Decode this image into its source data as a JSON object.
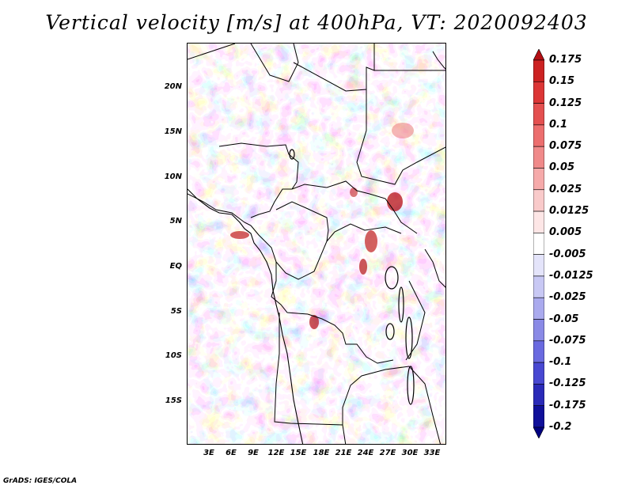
{
  "title": "Vertical velocity [m/s] at 400hPa, VT: 2020092403",
  "footer": "GrADS: IGES/COLA",
  "map": {
    "lat_labels": [
      "20N",
      "15N",
      "10N",
      "5N",
      "EQ",
      "5S",
      "10S",
      "15S"
    ],
    "lon_labels": [
      "3E",
      "6E",
      "9E",
      "12E",
      "15E",
      "18E",
      "21E",
      "24E",
      "27E",
      "30E",
      "33E"
    ]
  },
  "colorbar": {
    "labels": [
      "0.175",
      "0.15",
      "0.125",
      "0.1",
      "0.075",
      "0.05",
      "0.025",
      "0.0125",
      "0.005",
      "-0.005",
      "-0.0125",
      "-0.025",
      "-0.05",
      "-0.075",
      "-0.1",
      "-0.125",
      "-0.175",
      "-0.2"
    ],
    "colors": [
      "#b40f14",
      "#cc2222",
      "#dc3636",
      "#e45050",
      "#ec6e6e",
      "#f08a8a",
      "#f6aaaa",
      "#f9caca",
      "#fde6e6",
      "#ffffff",
      "#e4e4fa",
      "#c8c8f4",
      "#aaaaee",
      "#8a8ae6",
      "#6a6ae0",
      "#4848d2",
      "#2a2ab8",
      "#10109a",
      "#000080"
    ]
  }
}
